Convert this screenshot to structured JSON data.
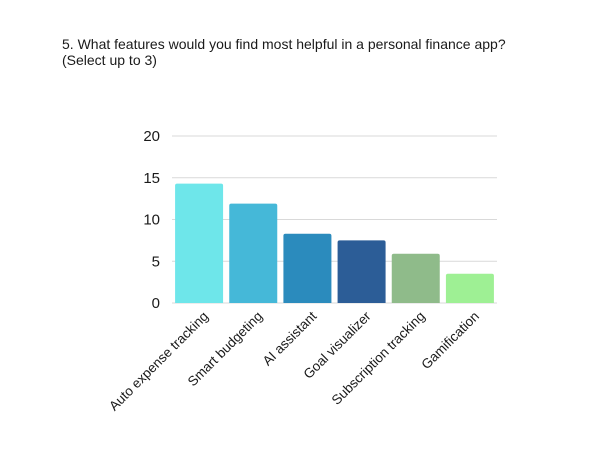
{
  "question": {
    "line1": "5. What features would you find most helpful in a personal finance app?",
    "line2": "(Select up to 3)"
  },
  "chart_data": {
    "type": "bar",
    "title": "5. What features would you find most helpful in a personal finance app? (Select up to 3)",
    "xlabel": "",
    "ylabel": "",
    "categories": [
      "Auto expense tracking",
      "Smart budgeting",
      "AI assistant",
      "Goal visualizer",
      "Subscription tracking",
      "Gamification"
    ],
    "values": [
      14.3,
      11.9,
      8.3,
      7.5,
      5.9,
      3.5
    ],
    "colors": [
      "#6ee6ea",
      "#45b8d8",
      "#2b8bbd",
      "#2c5d97",
      "#8fbb8a",
      "#9ef094"
    ],
    "ylim": [
      0,
      20
    ],
    "yticks": [
      0,
      5,
      10,
      15,
      20
    ],
    "grid": true,
    "legend": "none"
  }
}
